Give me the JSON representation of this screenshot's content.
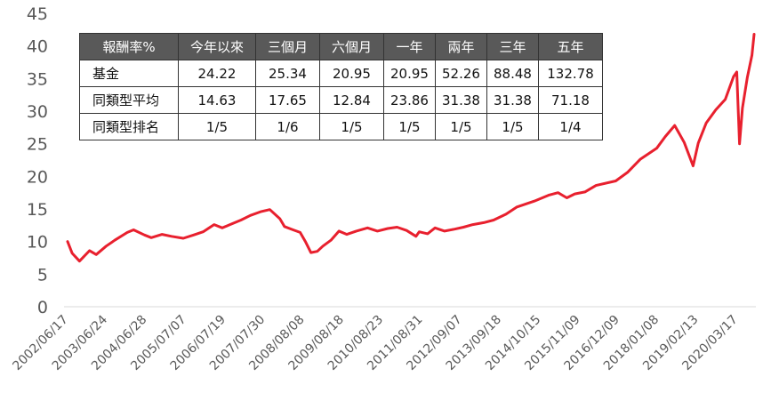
{
  "chart_data": {
    "type": "line",
    "title": "",
    "xlabel": "",
    "ylabel": "",
    "ylim": [
      0,
      45
    ],
    "y_ticks": [
      0,
      5,
      10,
      15,
      20,
      25,
      30,
      35,
      40,
      45
    ],
    "x_tick_labels": [
      "2002/06/17",
      "2003/06/24",
      "2004/06/28",
      "2005/07/07",
      "2006/07/19",
      "2007/07/30",
      "2008/08/08",
      "2009/08/18",
      "2010/08/23",
      "2011/08/31",
      "2012/09/07",
      "2013/09/18",
      "2014/10/15",
      "2015/11/09",
      "2016/12/09",
      "2018/01/08",
      "2019/02/13",
      "2020/03/17"
    ],
    "grid": false,
    "line_color": "#e8202e",
    "series": [
      {
        "x": [
          "2002/06/17",
          "2002/08/01",
          "2002/10/10",
          "2003/01/15",
          "2003/03/20",
          "2003/06/24",
          "2003/09/15",
          "2004/01/15",
          "2004/03/15",
          "2004/06/28",
          "2004/09/01",
          "2004/12/15",
          "2005/03/15",
          "2005/07/07",
          "2005/10/15",
          "2006/01/15",
          "2006/05/01",
          "2006/07/19",
          "2006/10/01",
          "2007/01/15",
          "2007/04/15",
          "2007/07/30",
          "2007/10/20",
          "2008/01/25",
          "2008/03/10",
          "2008/06/01",
          "2008/08/08",
          "2008/10/01",
          "2008/11/20",
          "2009/01/20",
          "2009/03/15",
          "2009/06/01",
          "2009/08/18",
          "2009/11/01",
          "2010/02/01",
          "2010/05/20",
          "2010/08/23",
          "2010/12/01",
          "2011/03/01",
          "2011/06/01",
          "2011/08/31",
          "2011/10/01",
          "2011/12/20",
          "2012/03/01",
          "2012/06/01",
          "2012/09/07",
          "2012/12/01",
          "2013/03/01",
          "2013/06/15",
          "2013/09/18",
          "2014/01/15",
          "2014/05/01",
          "2014/10/15",
          "2015/03/01",
          "2015/06/01",
          "2015/08/25",
          "2015/11/09",
          "2016/02/15",
          "2016/06/01",
          "2016/12/09",
          "2017/04/01",
          "2017/08/01",
          "2018/01/08",
          "2018/04/01",
          "2018/07/01",
          "2018/10/01",
          "2018/12/25",
          "2019/02/13",
          "2019/05/01",
          "2019/08/01",
          "2019/11/01",
          "2020/01/20",
          "2020/02/20",
          "2020/03/17",
          "2020/04/15",
          "2020/06/01",
          "2020/07/15",
          "2020/08/05"
        ],
        "y": [
          10.0,
          8.2,
          7.0,
          8.6,
          8.0,
          9.3,
          10.2,
          11.4,
          11.8,
          11.0,
          10.6,
          11.1,
          10.8,
          10.5,
          11.0,
          11.5,
          12.6,
          12.1,
          12.6,
          13.3,
          14.0,
          14.6,
          14.9,
          13.5,
          12.3,
          11.8,
          11.4,
          9.9,
          8.3,
          8.5,
          9.3,
          10.2,
          11.6,
          11.1,
          11.6,
          12.1,
          11.6,
          12.0,
          12.2,
          11.7,
          10.8,
          11.5,
          11.2,
          12.1,
          11.6,
          11.9,
          12.2,
          12.6,
          12.9,
          13.3,
          14.2,
          15.3,
          16.2,
          17.1,
          17.5,
          16.7,
          17.3,
          17.6,
          18.6,
          19.3,
          20.6,
          22.6,
          24.3,
          26.1,
          27.8,
          25.2,
          21.6,
          25.1,
          28.2,
          30.2,
          31.8,
          35.3,
          36.0,
          25.0,
          30.5,
          35.2,
          38.6,
          41.8
        ]
      }
    ]
  },
  "table": {
    "columns": [
      "報酬率%",
      "今年以來",
      "三個月",
      "六個月",
      "一年",
      "兩年",
      "三年",
      "五年"
    ],
    "rows": [
      {
        "label": "基金",
        "values": [
          "24.22",
          "25.34",
          "20.95",
          "20.95",
          "52.26",
          "88.48",
          "132.78"
        ]
      },
      {
        "label": "同類型平均",
        "values": [
          "14.63",
          "17.65",
          "12.84",
          "23.86",
          "31.38",
          "31.38",
          "71.18"
        ]
      },
      {
        "label": "同類型排名",
        "values": [
          "1/5",
          "1/6",
          "1/5",
          "1/5",
          "1/5",
          "1/5",
          "1/4"
        ]
      }
    ]
  }
}
